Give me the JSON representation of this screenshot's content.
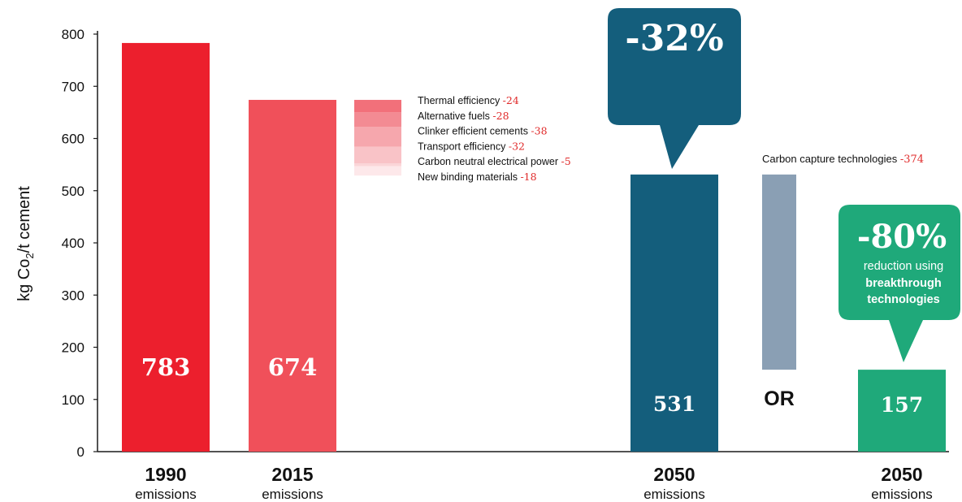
{
  "chart_data": {
    "type": "bar",
    "ylabel": "kg Co2/t cement",
    "ylabel_parts": {
      "before": "kg Co",
      "sub": "2",
      "after": "/t cement"
    },
    "ylim": [
      0,
      800
    ],
    "yticks": [
      "0",
      "100",
      "200",
      "300",
      "400",
      "500",
      "600",
      "700",
      "800"
    ],
    "bars": [
      {
        "year": "1990",
        "sub": "emissions",
        "value": 783,
        "label": "783",
        "color": "#ec1f2d"
      },
      {
        "year": "2015",
        "sub": "emissions",
        "value": 674,
        "label": "674",
        "color": "#f0505a"
      },
      {
        "year": "2050",
        "sub": "emissions",
        "value": 531,
        "label": "531",
        "color": "#145e7c"
      },
      {
        "year": "2050",
        "sub": "emissions",
        "value": 157,
        "label": "157",
        "color": "#1fa97a"
      }
    ],
    "reductions": [
      {
        "name": "Thermal efficiency",
        "value": "-24",
        "color": "#f2707a"
      },
      {
        "name": "Alternative fuels",
        "value": "-28",
        "color": "#f38b93"
      },
      {
        "name": "Clinker efficient cements",
        "value": "-38",
        "color": "#f6a7ad"
      },
      {
        "name": "Transport efficiency",
        "value": "-32",
        "color": "#f9c3c7"
      },
      {
        "name": "Carbon neutral electrical power",
        "value": "-5",
        "color": "#fbd5d8"
      },
      {
        "name": "New binding materials",
        "value": "-18",
        "color": "#fde8ea"
      }
    ],
    "carbon_capture": {
      "name": "Carbon capture technologies",
      "value": "-374",
      "from": 531,
      "to": 157,
      "color": "#8a9fb4"
    },
    "or_label": "OR",
    "callout_32": {
      "text": "-32%",
      "color": "#145e7c"
    },
    "callout_80": {
      "text": "-80%",
      "line1": "reduction using",
      "line2": "breakthrough",
      "line3": "technologies",
      "color": "#1fa97a"
    },
    "accent_red": "#e02b2b",
    "axis_color": "#1a1a1a"
  }
}
